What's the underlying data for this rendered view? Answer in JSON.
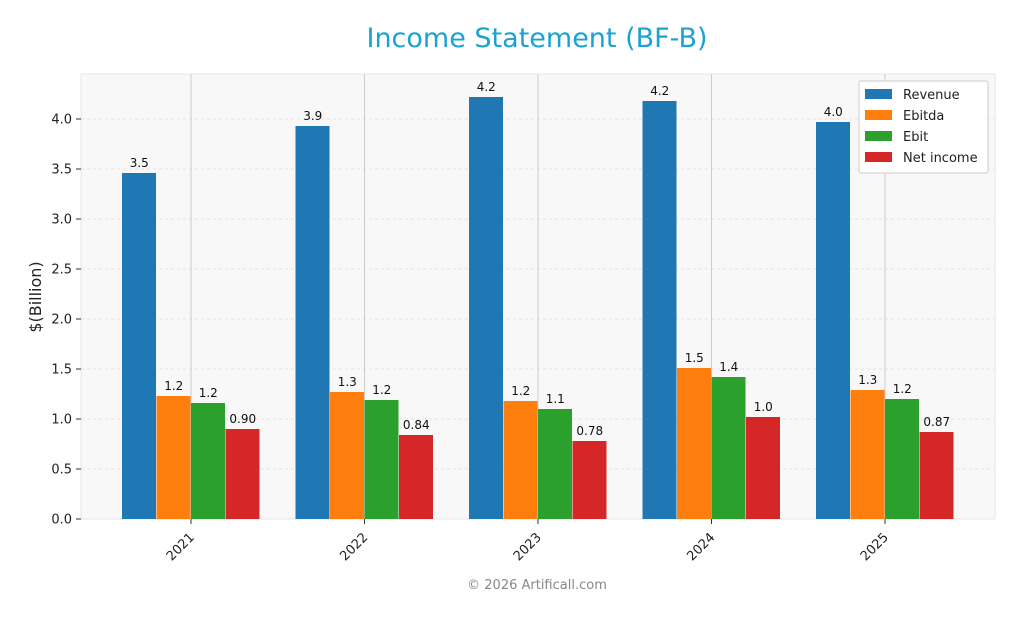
{
  "chart_data": {
    "type": "bar",
    "title": "Income Statement (BF-B)",
    "xlabel": "",
    "ylabel": "$(Billion)",
    "categories": [
      "2021",
      "2022",
      "2023",
      "2024",
      "2025"
    ],
    "series": [
      {
        "name": "Revenue",
        "color": "#1f77b4",
        "values": [
          3.46,
          3.93,
          4.22,
          4.18,
          3.97
        ],
        "labels": [
          "3.5",
          "3.9",
          "4.2",
          "4.2",
          "4.0"
        ]
      },
      {
        "name": "Ebitda",
        "color": "#ff7f0e",
        "values": [
          1.23,
          1.27,
          1.18,
          1.51,
          1.29
        ],
        "labels": [
          "1.2",
          "1.3",
          "1.2",
          "1.5",
          "1.3"
        ]
      },
      {
        "name": "Ebit",
        "color": "#2ca02c",
        "values": [
          1.16,
          1.19,
          1.1,
          1.42,
          1.2
        ],
        "labels": [
          "1.2",
          "1.2",
          "1.1",
          "1.4",
          "1.2"
        ]
      },
      {
        "name": "Net income",
        "color": "#d62728",
        "values": [
          0.9,
          0.84,
          0.78,
          1.02,
          0.87
        ],
        "labels": [
          "0.90",
          "0.84",
          "0.78",
          "1.0",
          "0.87"
        ]
      }
    ],
    "ylim": [
      0,
      4.4
    ],
    "yticks": [
      "0.0",
      "0.5",
      "1.0",
      "1.5",
      "2.0",
      "2.5",
      "3.0",
      "3.5",
      "4.0"
    ],
    "grid": true,
    "legend_position": "top-right"
  },
  "title_color": "#1aa3d0",
  "footer": "© 2026 Artificall.com"
}
